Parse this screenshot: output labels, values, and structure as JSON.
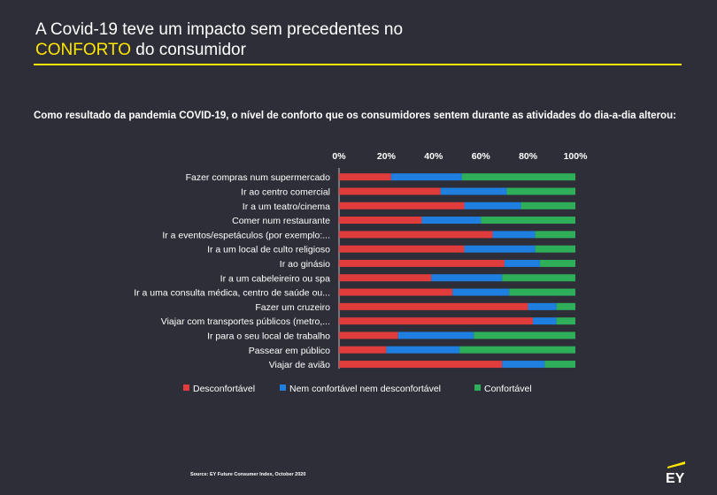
{
  "header": {
    "title_line1": "A Covid-19 teve um impacto sem precedentes no",
    "title_highlight": "CONFORTO",
    "title_rest": " do consumidor",
    "accent_color": "#ffe600"
  },
  "subtitle": "Como resultado da pandemia COVID-19, o nível de conforto que os consumidores sentem durante as atividades do dia-a-dia alterou:",
  "chart_data": {
    "type": "bar",
    "orientation": "horizontal",
    "stacked": true,
    "categories": [
      "Fazer compras num supermercado",
      "Ir ao centro comercial",
      "Ir a um teatro/cinema",
      "Comer num restaurante",
      "Ir a eventos/espetáculos (por exemplo:...",
      "Ir a um local de culto religioso",
      "Ir ao ginásio",
      "Ir a um cabeleireiro ou spa",
      "Ir a uma consulta médica, centro de saúde ou...",
      "Fazer um cruzeiro",
      "Viajar com transportes públicos (metro,...",
      "Ir para o seu local de trabalho",
      "Passear em público",
      "Viajar de avião"
    ],
    "series": [
      {
        "name": "Desconfortável",
        "color": "#e03c3c",
        "values": [
          22,
          43,
          53,
          35,
          65,
          53,
          70,
          39,
          48,
          80,
          82,
          25,
          20,
          69
        ]
      },
      {
        "name": "Nem confortável nem desconfortável",
        "color": "#1f7fe0",
        "values": [
          30,
          28,
          24,
          25,
          18,
          30,
          15,
          30,
          24,
          12,
          10,
          32,
          31,
          18
        ]
      },
      {
        "name": "Confortável",
        "color": "#2fae5a",
        "values": [
          48,
          29,
          23,
          40,
          17,
          17,
          15,
          31,
          28,
          8,
          8,
          43,
          49,
          13
        ]
      }
    ],
    "xlim": [
      0,
      100
    ],
    "x_ticks": [
      "0%",
      "20%",
      "40%",
      "60%",
      "80%",
      "100%"
    ],
    "legend_position": "bottom",
    "grid": false
  },
  "footer": {
    "source": "Source: EY Future Consumer Index, October 2020",
    "logo_text": "EY"
  }
}
